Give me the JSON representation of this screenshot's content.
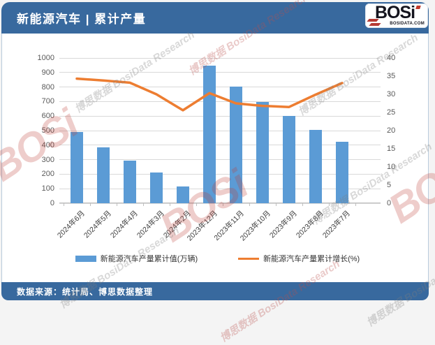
{
  "header": {
    "title": "新能源汽车 | 累计产量"
  },
  "logo": {
    "text_main": "BOSi",
    "domain": "BOSIDATA.COM"
  },
  "footer": {
    "source_note": "数据来源：统计局、博思数据整理"
  },
  "watermarks": {
    "brand": "BOSi",
    "script": "博思数据 BosiData Research"
  },
  "chart_data": {
    "type": "bar",
    "subtype": "combo-bar-line",
    "title": "新能源汽车 | 累计产量",
    "categories": [
      "2024年6月",
      "2024年5月",
      "2024年4月",
      "2024年3月",
      "2024年2月",
      "2023年12月",
      "2023年11月",
      "2023年10月",
      "2023年9月",
      "2023年8月",
      "2023年7月"
    ],
    "series": [
      {
        "name": "新能源汽车产量累计值(万辆)",
        "type": "bar",
        "axis": "left",
        "color": "#5b9bd5",
        "values": [
          490,
          385,
          295,
          210,
          115,
          945,
          805,
          695,
          600,
          505,
          425
        ]
      },
      {
        "name": "新能源汽车产量累计增长(%)",
        "type": "line",
        "axis": "right",
        "color": "#ed7d31",
        "values": [
          34.3,
          33.8,
          33.2,
          30.0,
          25.6,
          30.3,
          27.5,
          26.8,
          26.5,
          29.9,
          33.1
        ]
      }
    ],
    "y_left": {
      "min": 0,
      "max": 1000,
      "step": 100
    },
    "y_right": {
      "min": 0,
      "max": 40,
      "step": 5
    },
    "grid": "horizontal gridlines on primary (left) axis",
    "legend_position": "bottom",
    "x_label_rotation_deg": -45
  }
}
